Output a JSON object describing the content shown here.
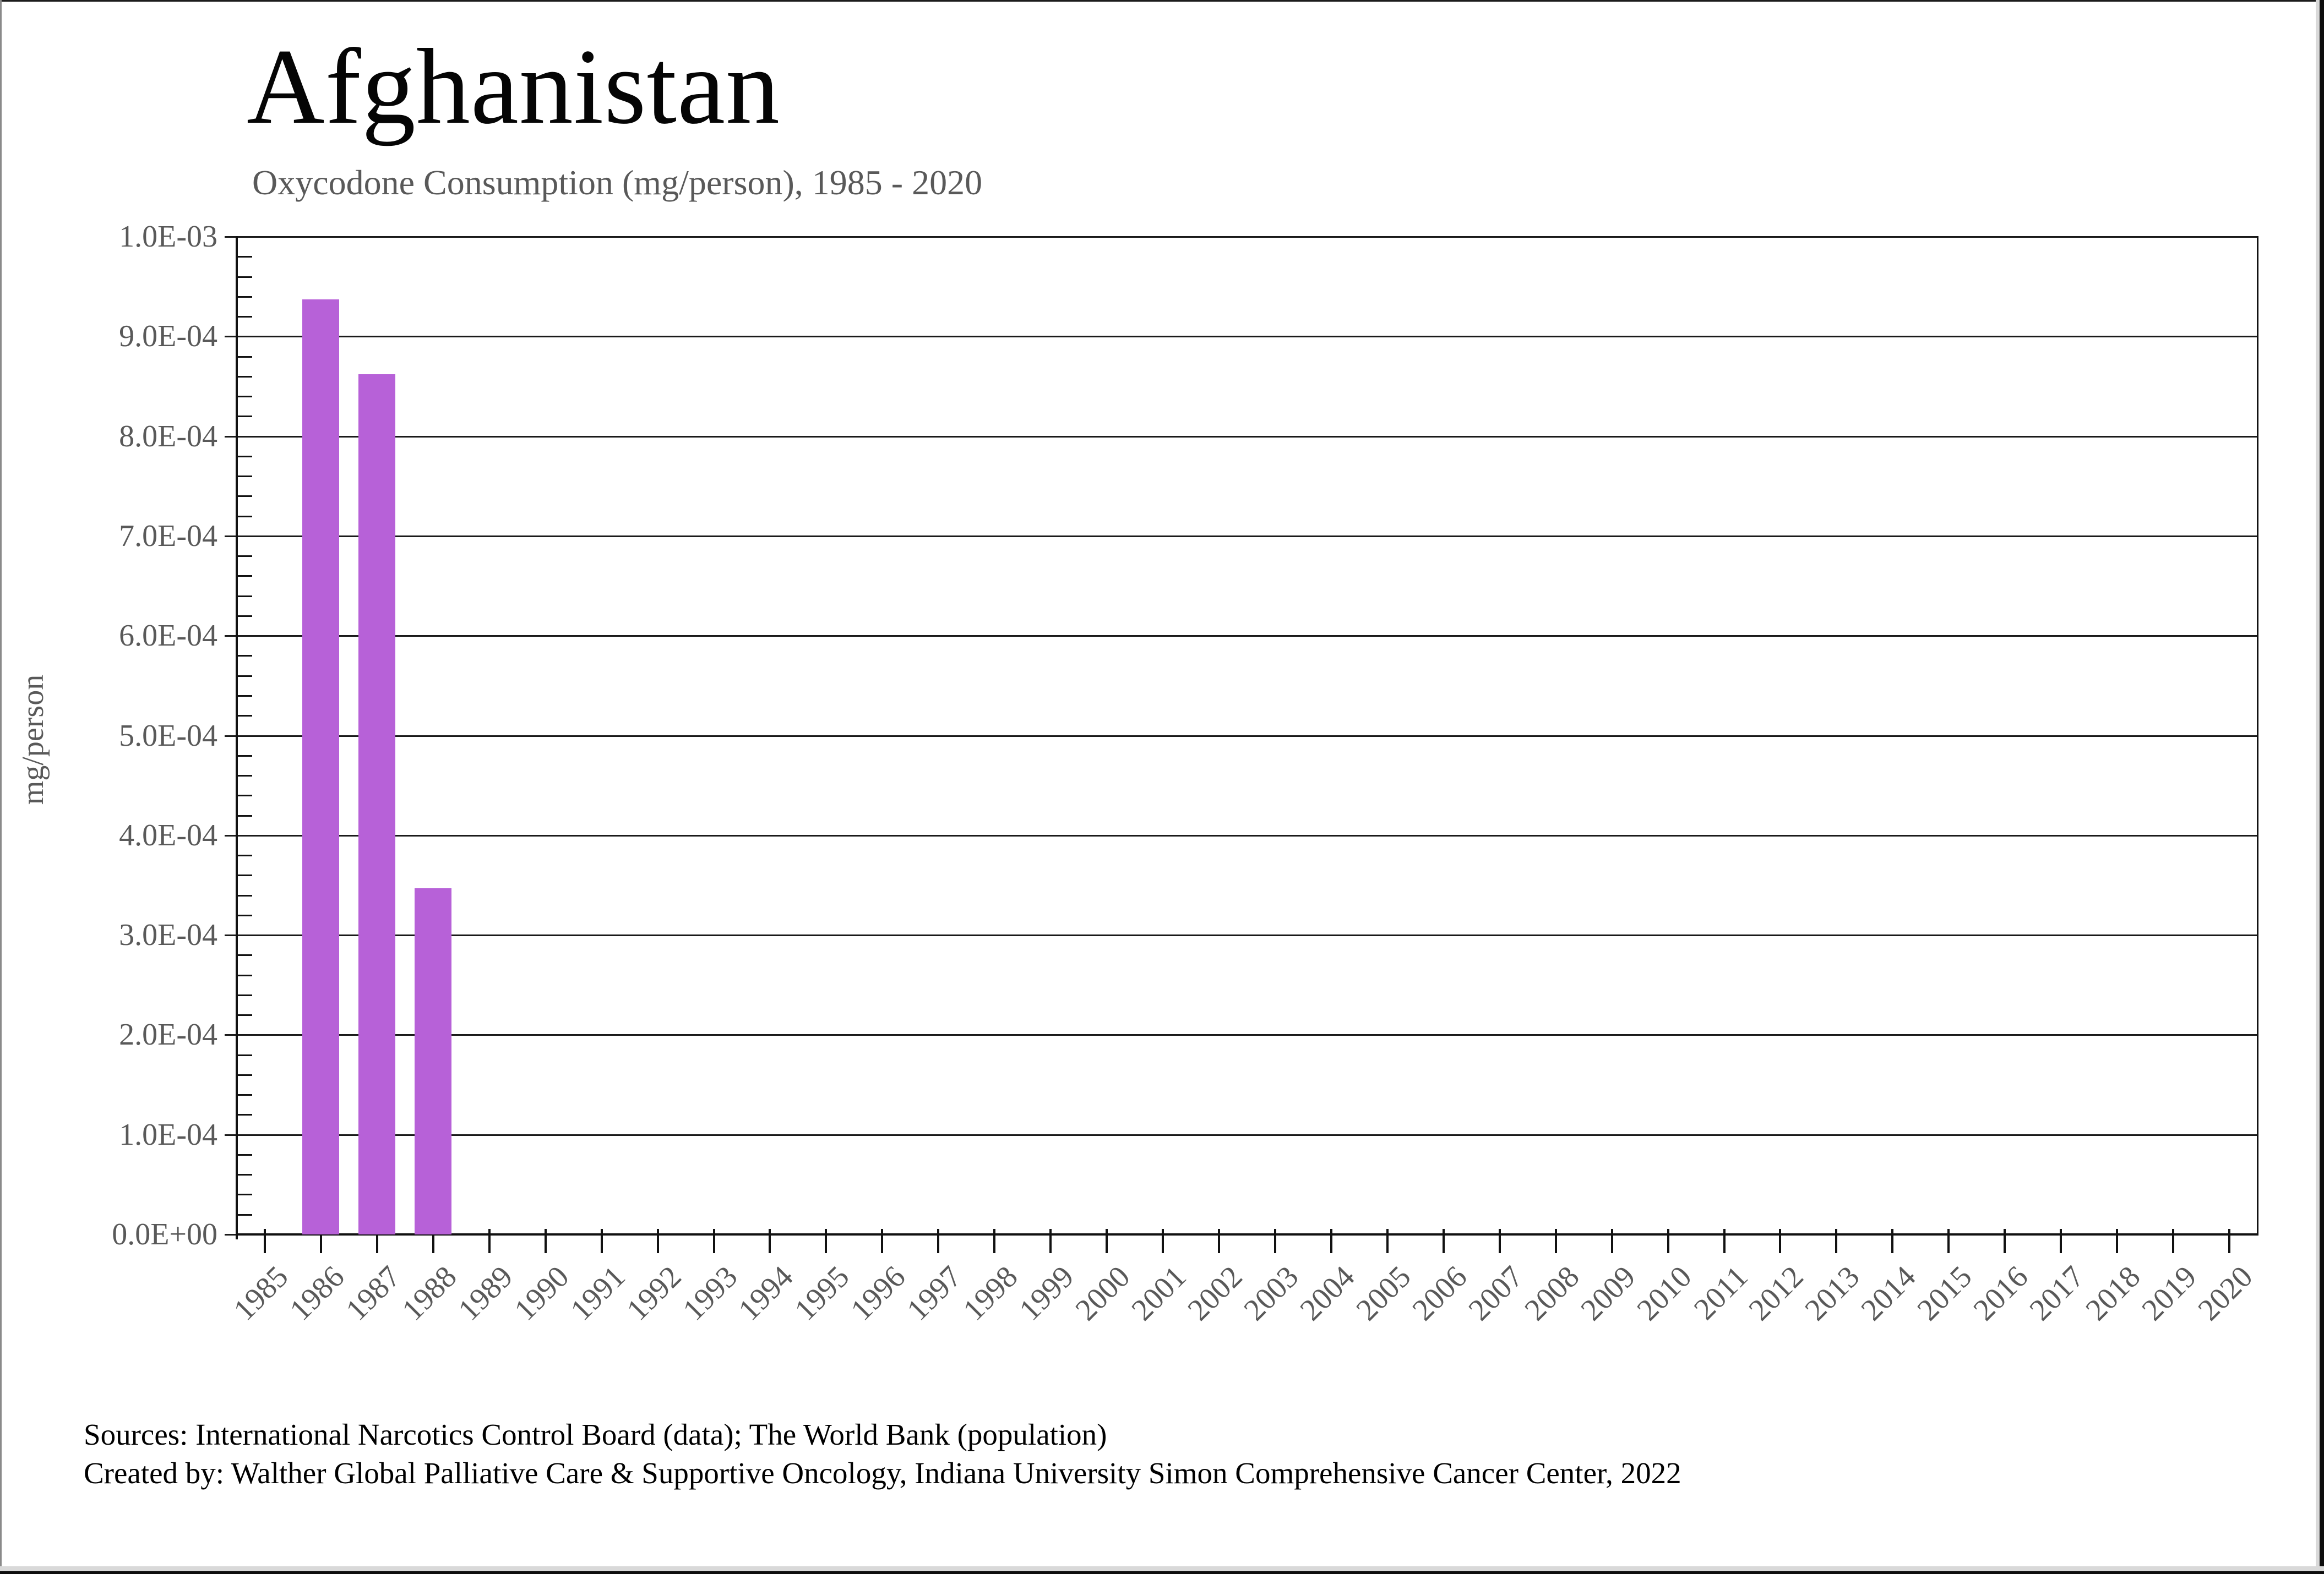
{
  "header": {
    "title": "Afghanistan",
    "subtitle": "Oxycodone Consumption (mg/person), 1985 - 2020"
  },
  "chart_data": {
    "type": "bar",
    "title": "Afghanistan",
    "subtitle": "Oxycodone Consumption (mg/person), 1985 - 2020",
    "xlabel": "",
    "ylabel": "mg/person",
    "categories": [
      "1985",
      "1986",
      "1987",
      "1988",
      "1989",
      "1990",
      "1991",
      "1992",
      "1993",
      "1994",
      "1995",
      "1996",
      "1997",
      "1998",
      "1999",
      "2000",
      "2001",
      "2002",
      "2003",
      "2004",
      "2005",
      "2006",
      "2007",
      "2008",
      "2009",
      "2010",
      "2011",
      "2012",
      "2013",
      "2014",
      "2015",
      "2016",
      "2017",
      "2018",
      "2019",
      "2020"
    ],
    "values": [
      0,
      0.000937,
      0.000862,
      0.000347,
      0,
      0,
      0,
      0,
      0,
      0,
      0,
      0,
      0,
      0,
      0,
      0,
      0,
      0,
      0,
      0,
      0,
      0,
      0,
      0,
      0,
      0,
      0,
      0,
      0,
      0,
      0,
      0,
      0,
      0,
      0,
      0
    ],
    "ylim": [
      0,
      0.001
    ],
    "ytick_labels": [
      "0.0E+00",
      "1.0E-04",
      "2.0E-04",
      "3.0E-04",
      "4.0E-04",
      "5.0E-04",
      "6.0E-04",
      "7.0E-04",
      "8.0E-04",
      "9.0E-04",
      "1.0E-03"
    ],
    "minor_ticks_per_major": 5,
    "grid": "horizontal-major",
    "legend": "none",
    "bar_color": "#b761d8",
    "axis_color": "#111111",
    "label_color": "#595959"
  },
  "footer": {
    "line1": "Sources: International Narcotics Control Board (data); The World Bank (population)",
    "line2": "Created by: Walther Global Palliative Care & Supportive Oncology, Indiana University Simon Comprehensive Cancer Center, 2022"
  }
}
